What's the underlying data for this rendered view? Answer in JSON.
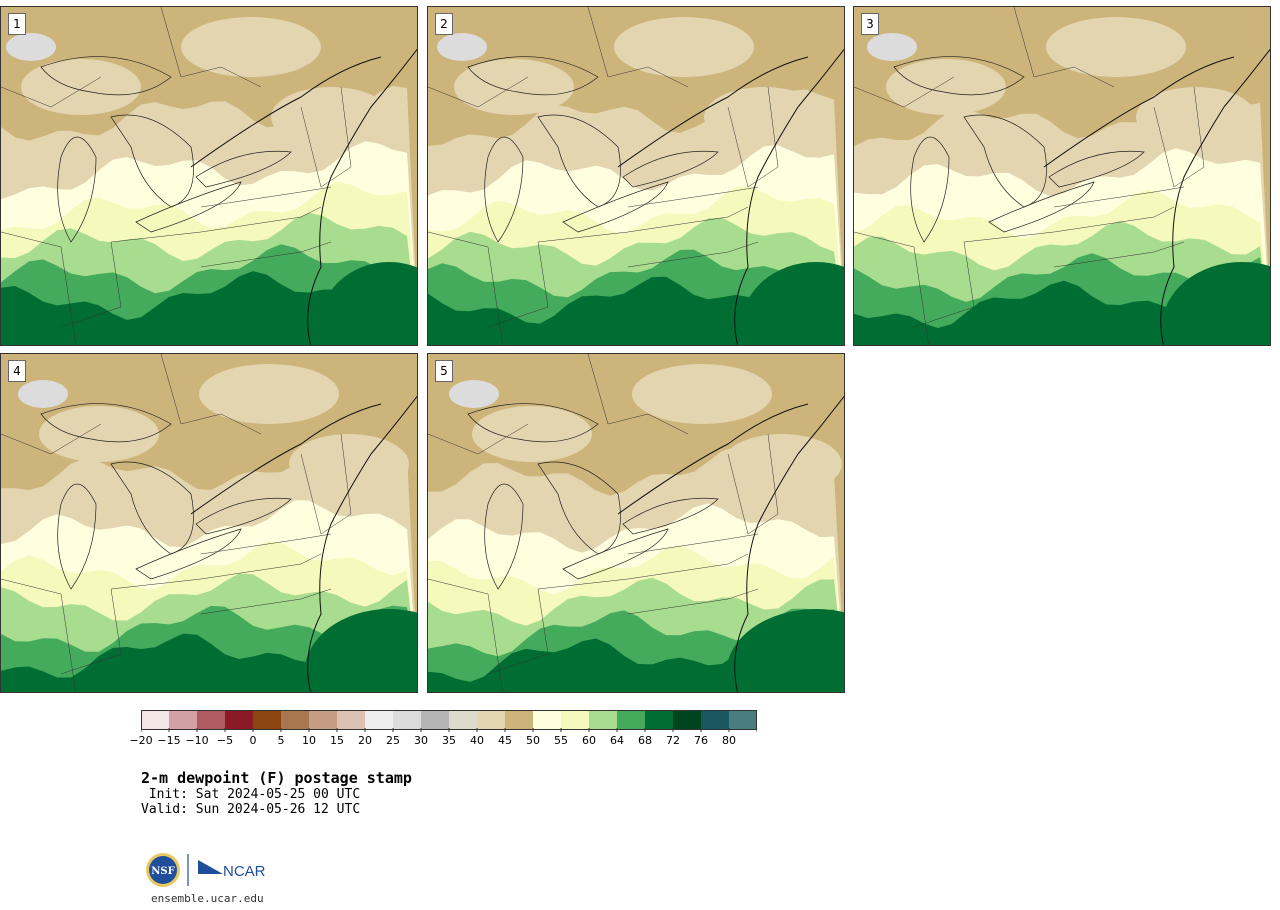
{
  "panels": [
    {
      "label": "1",
      "shift": 0
    },
    {
      "label": "2",
      "shift": 1
    },
    {
      "label": "3",
      "shift": 2
    },
    {
      "label": "4",
      "shift": 3
    },
    {
      "label": "5",
      "shift": 4
    }
  ],
  "colorbar": {
    "colors": [
      "#f2e6e6",
      "#d3a0a3",
      "#b05a62",
      "#8b1a24",
      "#8b4513",
      "#a87650",
      "#c59d84",
      "#dfc1b3",
      "#eeeeee",
      "#dcdcdc",
      "#b5b5b5",
      "#dcdccc",
      "#e3d5b0",
      "#cdb47a",
      "#ffffe0",
      "#f5f9bb",
      "#a8dc8e",
      "#45ab5c",
      "#006d33",
      "#00431f",
      "#1b5760",
      "#4a7d80"
    ],
    "ticks": [
      "−20",
      "−15",
      "−10",
      "−5",
      "0",
      "5",
      "10",
      "15",
      "20",
      "25",
      "30",
      "35",
      "40",
      "45",
      "50",
      "55",
      "60",
      "64",
      "68",
      "72",
      "76",
      "80"
    ]
  },
  "title": "2-m dewpoint (F) postage stamp",
  "init": " Init: Sat 2024-05-25 00 UTC",
  "valid": "Valid: Sun 2024-05-26 12 UTC",
  "logos": {
    "nsf": "NSF",
    "ncar": "NCAR"
  },
  "site": "ensemble.ucar.edu"
}
